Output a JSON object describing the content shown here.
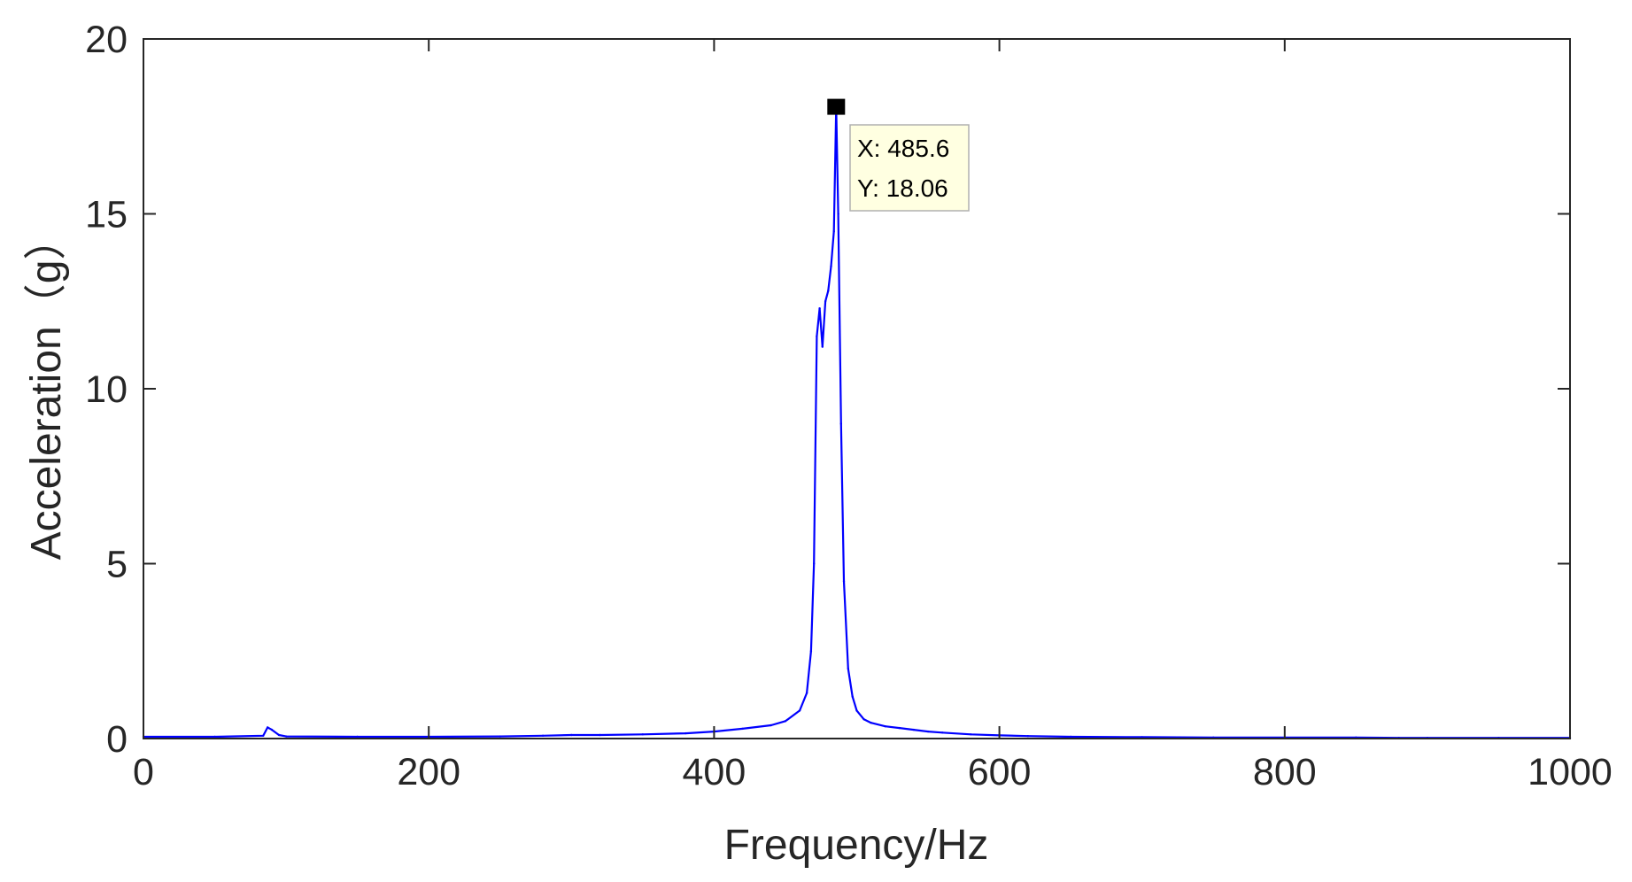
{
  "chart_data": {
    "type": "line",
    "title": "",
    "xlabel": "Frequency/Hz",
    "ylabel": "Acceleration（g）",
    "xlim": [
      0,
      1000
    ],
    "ylim": [
      0,
      20
    ],
    "xticks": [
      0,
      200,
      400,
      600,
      800,
      1000
    ],
    "yticks": [
      0,
      5,
      10,
      15,
      20
    ],
    "grid": false,
    "box": true,
    "series": [
      {
        "color": "#0000ff",
        "x": [
          0,
          50,
          84,
          87,
          90,
          95,
          100,
          150,
          200,
          250,
          280,
          300,
          320,
          350,
          380,
          400,
          420,
          440,
          450,
          460,
          465,
          468,
          470,
          472,
          474,
          476,
          478,
          480,
          482,
          484,
          485.6,
          487,
          489,
          491,
          494,
          497,
          500,
          505,
          510,
          520,
          530,
          540,
          550,
          560,
          580,
          600,
          620,
          650,
          700,
          750,
          800,
          850,
          880,
          900,
          950,
          1000
        ],
        "y": [
          0.05,
          0.05,
          0.08,
          0.32,
          0.25,
          0.1,
          0.06,
          0.05,
          0.05,
          0.06,
          0.08,
          0.1,
          0.1,
          0.12,
          0.15,
          0.2,
          0.28,
          0.38,
          0.5,
          0.8,
          1.3,
          2.5,
          5.0,
          11.5,
          12.3,
          11.2,
          12.5,
          12.8,
          13.5,
          14.5,
          18.06,
          15.0,
          9.0,
          4.5,
          2.0,
          1.2,
          0.8,
          0.55,
          0.45,
          0.35,
          0.3,
          0.25,
          0.2,
          0.17,
          0.12,
          0.09,
          0.07,
          0.05,
          0.04,
          0.03,
          0.03,
          0.03,
          0.02,
          0.02,
          0.02,
          0.02
        ]
      }
    ],
    "annotation": {
      "x_label": "X: 485.6",
      "y_label": "Y: 18.06",
      "x": 485.6,
      "y": 18.06
    }
  }
}
